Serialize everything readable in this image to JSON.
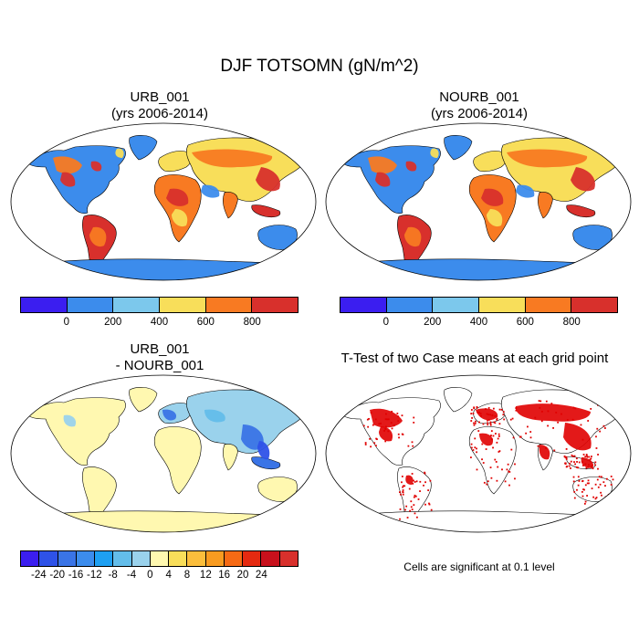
{
  "title": "DJF TOTSOMN (gN/m^2)",
  "panels": {
    "top_left": {
      "title_line1": "URB_001",
      "title_line2": "(yrs 2006-2014)"
    },
    "top_right": {
      "title_line1": "NOURB_001",
      "title_line2": "(yrs 2006-2014)"
    },
    "bottom_left": {
      "title_line1": "URB_001",
      "title_line2": "- NOURB_001"
    },
    "bottom_right": {
      "title_line1": "T-Test of two Case means at each grid point",
      "note": "Cells are significant at 0.1 level"
    }
  },
  "colorbar_abs": {
    "colors": [
      "#3b1ef0",
      "#3c8cec",
      "#7cc8ec",
      "#f8de5a",
      "#f87a22",
      "#d8302c"
    ],
    "ticks": [
      "0",
      "200",
      "400",
      "600",
      "800"
    ]
  },
  "colorbar_diff": {
    "colors": [
      "#3b1ef0",
      "#2e52e8",
      "#3a74e6",
      "#3c8cec",
      "#1ea0f2",
      "#63bdea",
      "#9ad2ec",
      "#fff8b0",
      "#f8de5a",
      "#fbbe3c",
      "#f89b20",
      "#f66a14",
      "#e52a10",
      "#c8101c",
      "#d8302c"
    ],
    "ticks": [
      "-24",
      "-20",
      "-16",
      "-12",
      "-8",
      "-4",
      "0",
      "4",
      "8",
      "12",
      "16",
      "20",
      "24"
    ]
  },
  "chart_data": {
    "type": "map",
    "projection": "Robinson",
    "panels": [
      {
        "name": "URB_001 (yrs 2006-2014)",
        "variable": "DJF TOTSOMN",
        "units": "gN/m^2",
        "levels": [
          0,
          200,
          400,
          600,
          800
        ]
      },
      {
        "name": "NOURB_001 (yrs 2006-2014)",
        "variable": "DJF TOTSOMN",
        "units": "gN/m^2",
        "levels": [
          0,
          200,
          400,
          600,
          800
        ]
      },
      {
        "name": "URB_001 - NOURB_001",
        "levels": [
          -24,
          -20,
          -16,
          -12,
          -8,
          -4,
          0,
          4,
          8,
          12,
          16,
          20,
          24
        ]
      },
      {
        "name": "T-Test of two Case means at each grid point",
        "significance_level": 0.1,
        "mark_color": "#e00000"
      }
    ]
  }
}
